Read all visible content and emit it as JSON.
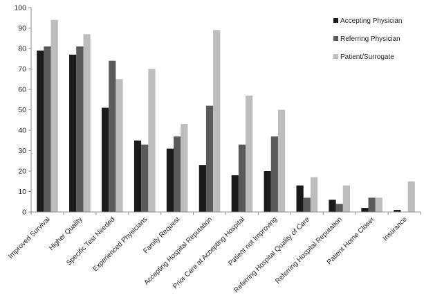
{
  "chart_data": {
    "type": "bar",
    "title": "",
    "xlabel": "",
    "ylabel": "",
    "ylim": [
      0,
      100
    ],
    "yticks": [
      0,
      10,
      20,
      30,
      40,
      50,
      60,
      70,
      80,
      90,
      100
    ],
    "grid": false,
    "legend_position": "top-right",
    "categories": [
      "Improved Survival",
      "Higher Quality",
      "Specific Test Needed",
      "Experienced Physicians",
      "Family Request",
      "Accepting Hospital Reputation",
      "Prior Care at Accepting Hospital",
      "Patient not Improving",
      "Referring Hospital Quality of Care",
      "Referring Hospital Reputation",
      "Patient Home Closer",
      "Insurance"
    ],
    "series": [
      {
        "name": "Accepting Physician",
        "color": "#1a1a1a",
        "values": [
          79,
          77,
          51,
          35,
          31,
          23,
          18,
          20,
          13,
          6,
          2,
          1
        ]
      },
      {
        "name": "Referring Physician",
        "color": "#5a5a5a",
        "values": [
          81,
          81,
          74,
          33,
          37,
          52,
          33,
          37,
          7,
          4,
          7,
          0
        ]
      },
      {
        "name": "Patient/Surrogate",
        "color": "#bdbdbd",
        "values": [
          94,
          87,
          65,
          70,
          43,
          89,
          57,
          50,
          17,
          13,
          7,
          15
        ]
      }
    ]
  }
}
